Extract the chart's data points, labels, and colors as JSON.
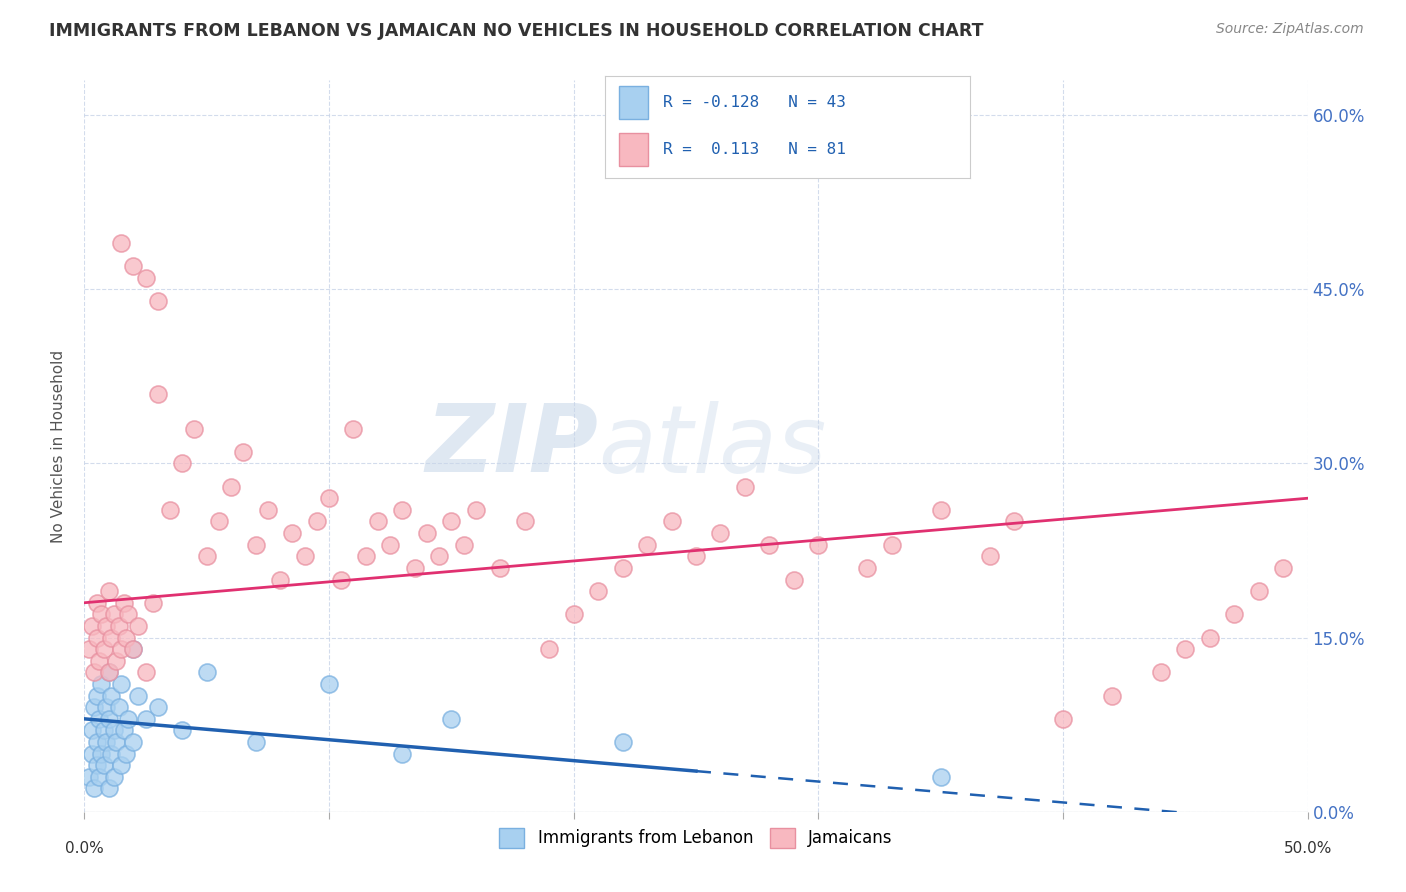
{
  "title": "IMMIGRANTS FROM LEBANON VS JAMAICAN NO VEHICLES IN HOUSEHOLD CORRELATION CHART",
  "source": "Source: ZipAtlas.com",
  "ylabel": "No Vehicles in Household",
  "ytick_vals": [
    0,
    15,
    30,
    45,
    60
  ],
  "xlim": [
    0,
    50
  ],
  "ylim": [
    0,
    63
  ],
  "blue_scatter_color": "#a8d0f0",
  "blue_edge_color": "#7ab0e0",
  "pink_scatter_color": "#f8b8c0",
  "pink_edge_color": "#e890a0",
  "trend_blue_color": "#2060b0",
  "trend_pink_color": "#e03070",
  "watermark": "ZIPatlas",
  "blue_trend_intercept": 8.0,
  "blue_trend_slope": -0.18,
  "blue_solid_end": 25,
  "pink_trend_intercept": 18.0,
  "pink_trend_slope": 0.18,
  "blue_scatter_x": [
    0.2,
    0.3,
    0.3,
    0.4,
    0.4,
    0.5,
    0.5,
    0.5,
    0.6,
    0.6,
    0.7,
    0.7,
    0.8,
    0.8,
    0.9,
    0.9,
    1.0,
    1.0,
    1.0,
    1.1,
    1.1,
    1.2,
    1.2,
    1.3,
    1.4,
    1.5,
    1.5,
    1.6,
    1.7,
    1.8,
    2.0,
    2.0,
    2.2,
    2.5,
    3.0,
    4.0,
    5.0,
    7.0,
    10.0,
    13.0,
    15.0,
    22.0,
    35.0
  ],
  "blue_scatter_y": [
    3,
    5,
    7,
    2,
    9,
    4,
    6,
    10,
    3,
    8,
    5,
    11,
    4,
    7,
    6,
    9,
    2,
    8,
    12,
    5,
    10,
    3,
    7,
    6,
    9,
    4,
    11,
    7,
    5,
    8,
    6,
    14,
    10,
    8,
    9,
    7,
    12,
    6,
    11,
    5,
    8,
    6,
    3
  ],
  "pink_scatter_x": [
    0.2,
    0.3,
    0.4,
    0.5,
    0.5,
    0.6,
    0.7,
    0.8,
    0.9,
    1.0,
    1.0,
    1.1,
    1.2,
    1.3,
    1.4,
    1.5,
    1.6,
    1.7,
    1.8,
    2.0,
    2.2,
    2.5,
    2.8,
    3.0,
    3.5,
    4.0,
    4.5,
    5.0,
    5.5,
    6.0,
    6.5,
    7.0,
    7.5,
    8.0,
    8.5,
    9.0,
    9.5,
    10.0,
    10.5,
    11.0,
    11.5,
    12.0,
    12.5,
    13.0,
    13.5,
    14.0,
    14.5,
    15.0,
    15.5,
    16.0,
    17.0,
    18.0,
    19.0,
    20.0,
    21.0,
    22.0,
    23.0,
    24.0,
    25.0,
    26.0,
    27.0,
    28.0,
    29.0,
    30.0,
    32.0,
    33.0,
    35.0,
    37.0,
    38.0,
    40.0,
    42.0,
    44.0,
    45.0,
    46.0,
    47.0,
    48.0,
    49.0,
    1.5,
    2.0,
    2.5,
    3.0
  ],
  "pink_scatter_y": [
    14,
    16,
    12,
    18,
    15,
    13,
    17,
    14,
    16,
    12,
    19,
    15,
    17,
    13,
    16,
    14,
    18,
    15,
    17,
    14,
    16,
    12,
    18,
    36,
    26,
    30,
    33,
    22,
    25,
    28,
    31,
    23,
    26,
    20,
    24,
    22,
    25,
    27,
    20,
    33,
    22,
    25,
    23,
    26,
    21,
    24,
    22,
    25,
    23,
    26,
    21,
    25,
    14,
    17,
    19,
    21,
    23,
    25,
    22,
    24,
    28,
    23,
    20,
    23,
    21,
    23,
    26,
    22,
    25,
    8,
    10,
    12,
    14,
    15,
    17,
    19,
    21,
    49,
    47,
    46,
    44
  ]
}
